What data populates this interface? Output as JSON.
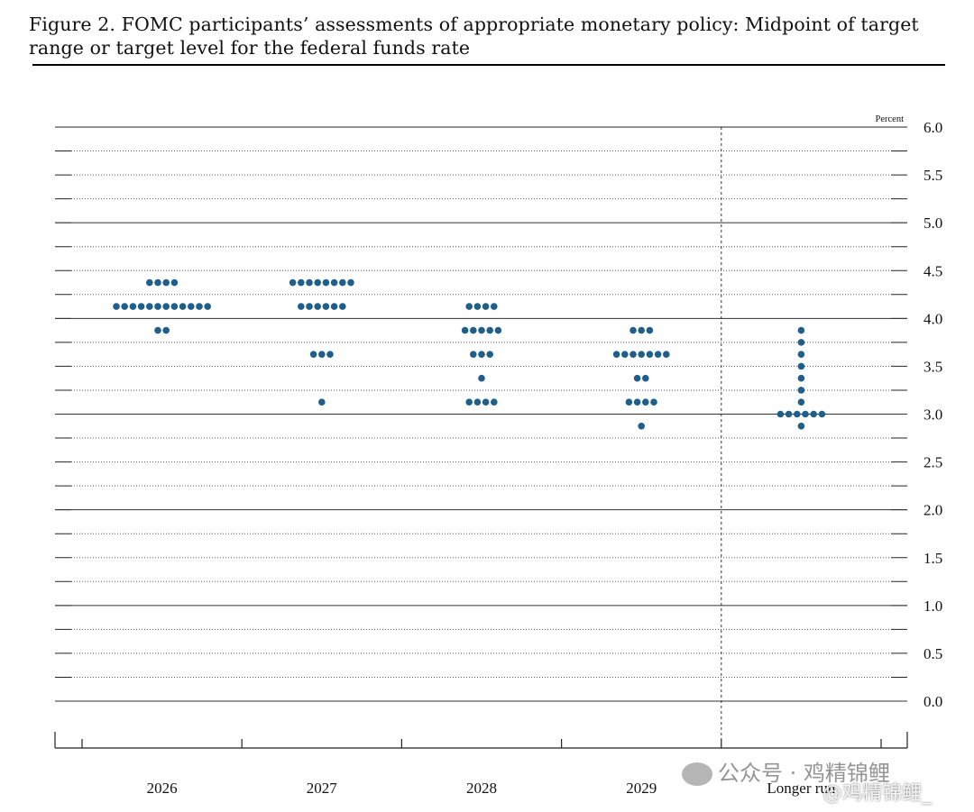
{
  "figure": {
    "title": "Figure 2. FOMC participants’ assessments of appropriate monetary policy: Midpoint of target range or target level for the federal funds rate"
  },
  "watermark": {
    "line1": "公众号 · 鸡精锦鲤",
    "line2": "@鸡精锦鲤_"
  },
  "chart_data": {
    "type": "scatter",
    "title": "Figure 2. FOMC participants’ assessments of appropriate monetary policy: Midpoint of target range or target level for the federal funds rate",
    "ylabel": "Percent",
    "xlabel": "",
    "ylim": [
      0,
      6
    ],
    "y_ticks": [
      "0.0",
      "0.5",
      "1.0",
      "1.5",
      "2.0",
      "2.5",
      "3.0",
      "3.5",
      "4.0",
      "4.5",
      "5.0",
      "5.5",
      "6.0"
    ],
    "categories": [
      "2026",
      "2027",
      "2028",
      "2029",
      "Longer run"
    ],
    "dot_color": "#1f5f8b",
    "grid": "dotted at 0.25, solid at whole numbers",
    "dots": [
      {
        "category": "2026",
        "counts": [
          {
            "rate": 4.375,
            "count": 4
          },
          {
            "rate": 4.125,
            "count": 12
          },
          {
            "rate": 3.875,
            "count": 2
          }
        ]
      },
      {
        "category": "2027",
        "counts": [
          {
            "rate": 4.375,
            "count": 8
          },
          {
            "rate": 4.125,
            "count": 6
          },
          {
            "rate": 3.625,
            "count": 3
          },
          {
            "rate": 3.125,
            "count": 1
          }
        ]
      },
      {
        "category": "2028",
        "counts": [
          {
            "rate": 4.125,
            "count": 4
          },
          {
            "rate": 3.875,
            "count": 5
          },
          {
            "rate": 3.625,
            "count": 3
          },
          {
            "rate": 3.375,
            "count": 1
          },
          {
            "rate": 3.125,
            "count": 4
          }
        ]
      },
      {
        "category": "2029",
        "counts": [
          {
            "rate": 3.875,
            "count": 3
          },
          {
            "rate": 3.625,
            "count": 7
          },
          {
            "rate": 3.375,
            "count": 2
          },
          {
            "rate": 3.125,
            "count": 4
          },
          {
            "rate": 2.875,
            "count": 1
          }
        ]
      },
      {
        "category": "Longer run",
        "counts": [
          {
            "rate": 3.875,
            "count": 1
          },
          {
            "rate": 3.75,
            "count": 1
          },
          {
            "rate": 3.625,
            "count": 1
          },
          {
            "rate": 3.5,
            "count": 1
          },
          {
            "rate": 3.375,
            "count": 1
          },
          {
            "rate": 3.25,
            "count": 1
          },
          {
            "rate": 3.125,
            "count": 1
          },
          {
            "rate": 3.0,
            "count": 6
          },
          {
            "rate": 2.875,
            "count": 1
          }
        ]
      }
    ]
  }
}
